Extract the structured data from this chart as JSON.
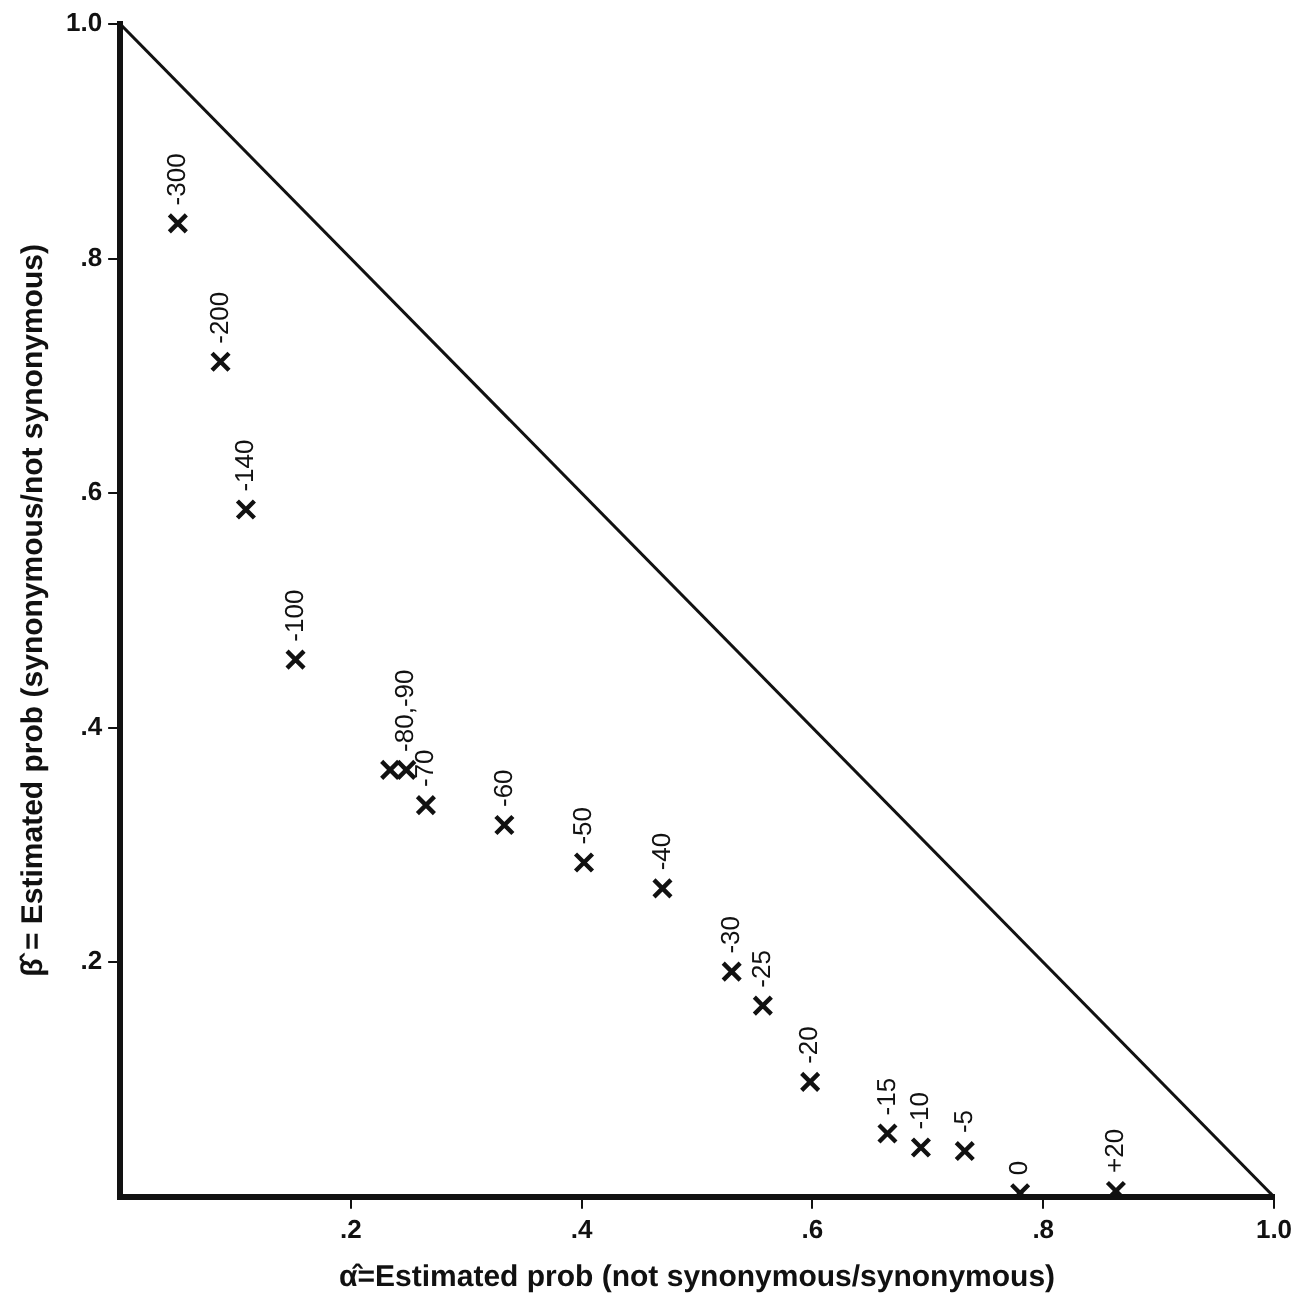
{
  "chart_data": {
    "type": "scatter",
    "xlabel": "α̂=Estimated prob (not synonymous/synonymous)",
    "ylabel": "β̂ = Estimated prob (synonymous/not synonymous)",
    "xlim": [
      0,
      1
    ],
    "ylim": [
      0,
      1
    ],
    "xticks": [
      {
        "value": 0.2,
        "label": ".2"
      },
      {
        "value": 0.4,
        "label": ".4"
      },
      {
        "value": 0.6,
        "label": ".6"
      },
      {
        "value": 0.8,
        "label": ".8"
      },
      {
        "value": 1,
        "label": "1.0"
      }
    ],
    "yticks": [
      {
        "value": 0.2,
        "label": ".2"
      },
      {
        "value": 0.4,
        "label": ".4"
      },
      {
        "value": 0.6,
        "label": ".6"
      },
      {
        "value": 0.8,
        "label": ".8"
      },
      {
        "value": 1,
        "label": "1.0"
      }
    ],
    "grid": false,
    "legend": false,
    "marker": "cross",
    "series": [
      {
        "color": "#111111",
        "x": [
          0.05,
          0.087,
          0.109,
          0.152,
          0.234,
          0.248,
          0.265,
          0.333,
          0.402,
          0.47,
          0.53,
          0.557,
          0.598,
          0.665,
          0.694,
          0.732,
          0.78,
          0.863
        ],
        "values": [
          0.83,
          0.712,
          0.586,
          0.458,
          0.364,
          0.364,
          0.334,
          0.317,
          0.285,
          0.263,
          0.192,
          0.163,
          0.098,
          0.054,
          0.042,
          0.039,
          0.003,
          0.005
        ]
      },
      {
        "type": "line",
        "color": "#111111",
        "x": [
          0,
          1
        ],
        "values": [
          1,
          0
        ],
        "marker": "none",
        "line_style": "solid"
      }
    ],
    "annotations": [
      {
        "text": "-300",
        "x": 0.05,
        "y": 0.83
      },
      {
        "text": "-200",
        "x": 0.087,
        "y": 0.712
      },
      {
        "text": "-140",
        "x": 0.109,
        "y": 0.586
      },
      {
        "text": "-100",
        "x": 0.152,
        "y": 0.458
      },
      {
        "text": "-80,-90",
        "x": 0.248,
        "y": 0.364
      },
      {
        "text": "-70",
        "x": 0.265,
        "y": 0.334
      },
      {
        "text": "-60",
        "x": 0.333,
        "y": 0.317
      },
      {
        "text": "-50",
        "x": 0.402,
        "y": 0.285
      },
      {
        "text": "-40",
        "x": 0.47,
        "y": 0.263
      },
      {
        "text": "-30",
        "x": 0.53,
        "y": 0.192
      },
      {
        "text": "-25",
        "x": 0.557,
        "y": 0.163
      },
      {
        "text": "-20",
        "x": 0.598,
        "y": 0.098
      },
      {
        "text": "-15",
        "x": 0.665,
        "y": 0.054
      },
      {
        "text": "-10",
        "x": 0.694,
        "y": 0.042
      },
      {
        "text": "-5",
        "x": 0.732,
        "y": 0.039
      },
      {
        "text": "0",
        "x": 0.78,
        "y": 0.003
      },
      {
        "text": "+20",
        "x": 0.863,
        "y": 0.005
      }
    ]
  }
}
